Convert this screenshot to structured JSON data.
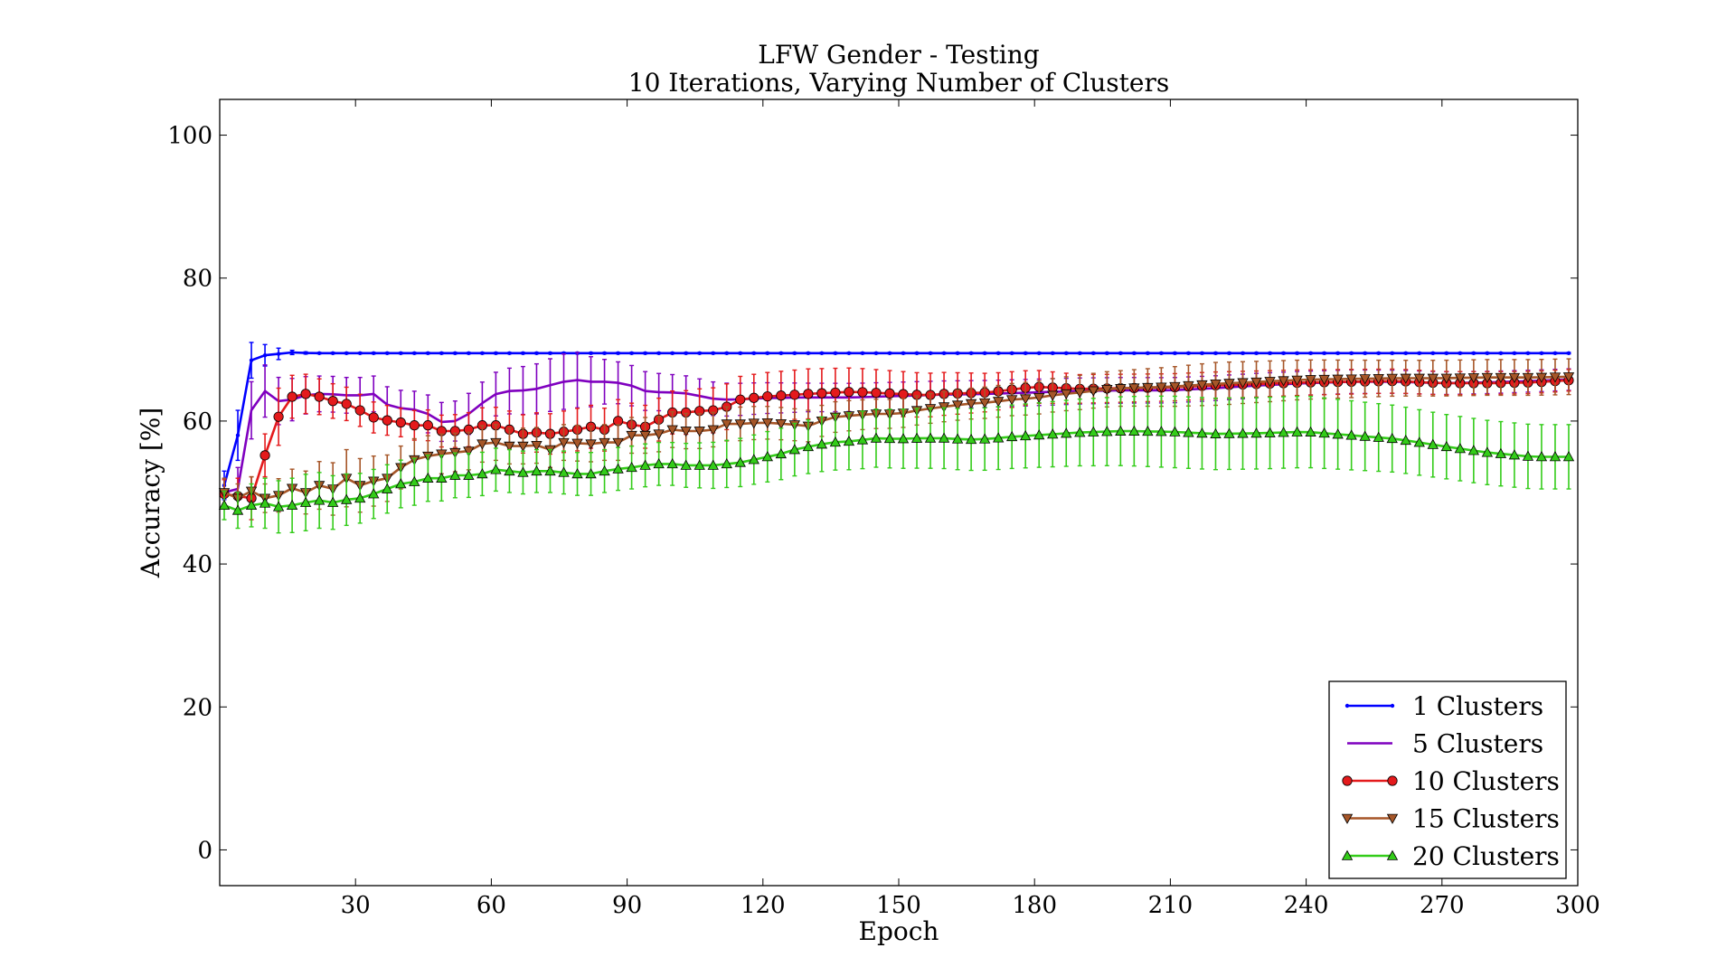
{
  "chart_data": {
    "type": "line",
    "title": "LFW Gender - Testing",
    "subtitle": "10 Iterations, Varying Number of Clusters",
    "xlabel": "Epoch",
    "ylabel": "Accuracy [%]",
    "xlim": [
      0,
      300
    ],
    "ylim": [
      -5,
      105
    ],
    "xticks": [
      30,
      60,
      90,
      120,
      150,
      180,
      210,
      240,
      270,
      300
    ],
    "yticks": [
      0,
      20,
      40,
      60,
      80,
      100
    ],
    "grid": false,
    "legend_position": "bottom-right",
    "marker_interval": 3,
    "series": [
      {
        "name": "1 Clusters",
        "color": "#0000ff",
        "marker": "dot",
        "points": [
          [
            1,
            51
          ],
          [
            4,
            58
          ],
          [
            7,
            68.5
          ],
          [
            10,
            69.2
          ],
          [
            13,
            69.4
          ],
          [
            16,
            69.6
          ],
          [
            20,
            69.5
          ],
          [
            30,
            69.5
          ],
          [
            60,
            69.5
          ],
          [
            120,
            69.5
          ],
          [
            180,
            69.5
          ],
          [
            240,
            69.5
          ],
          [
            298,
            69.5
          ]
        ],
        "err": [
          [
            1,
            2
          ],
          [
            4,
            3.5
          ],
          [
            7,
            2.5
          ],
          [
            10,
            1.5
          ],
          [
            13,
            0.8
          ],
          [
            16,
            0.3
          ],
          [
            20,
            0.1
          ],
          [
            300,
            0.1
          ]
        ]
      },
      {
        "name": "5 Clusters",
        "color": "#7f00bf",
        "marker": "none",
        "points": [
          [
            1,
            50
          ],
          [
            4,
            50.5
          ],
          [
            7,
            61.5
          ],
          [
            10,
            64.2
          ],
          [
            13,
            62.8
          ],
          [
            16,
            63
          ],
          [
            20,
            63.8
          ],
          [
            24,
            63.8
          ],
          [
            28,
            63.6
          ],
          [
            32,
            63.6
          ],
          [
            34,
            63.8
          ],
          [
            38,
            61.8
          ],
          [
            42,
            61.8
          ],
          [
            46,
            61
          ],
          [
            50,
            59.5
          ],
          [
            54,
            60.5
          ],
          [
            58,
            62.5
          ],
          [
            62,
            64.2
          ],
          [
            66,
            64.2
          ],
          [
            70,
            64.5
          ],
          [
            74,
            65.2
          ],
          [
            78,
            65.8
          ],
          [
            82,
            65.5
          ],
          [
            86,
            65.5
          ],
          [
            90,
            65.2
          ],
          [
            94,
            64.2
          ],
          [
            98,
            64
          ],
          [
            102,
            64
          ],
          [
            106,
            63.5
          ],
          [
            110,
            63
          ],
          [
            114,
            63
          ],
          [
            120,
            63.2
          ],
          [
            130,
            63.3
          ],
          [
            140,
            63.3
          ],
          [
            150,
            63.5
          ],
          [
            160,
            63.7
          ],
          [
            170,
            63.8
          ],
          [
            180,
            64
          ],
          [
            190,
            64.2
          ],
          [
            200,
            64.3
          ],
          [
            210,
            64.3
          ],
          [
            220,
            64.6
          ],
          [
            230,
            65
          ],
          [
            240,
            65.3
          ],
          [
            250,
            65.5
          ],
          [
            260,
            65.5
          ],
          [
            270,
            65.3
          ],
          [
            280,
            65.4
          ],
          [
            290,
            65.6
          ],
          [
            298,
            65.8
          ]
        ],
        "err": [
          [
            1,
            2
          ],
          [
            7,
            4
          ],
          [
            20,
            2.5
          ],
          [
            40,
            2.5
          ],
          [
            60,
            3
          ],
          [
            70,
            3.5
          ],
          [
            78,
            4
          ],
          [
            86,
            3
          ],
          [
            100,
            2.5
          ],
          [
            130,
            2
          ],
          [
            300,
            1.5
          ]
        ]
      },
      {
        "name": "10 Clusters",
        "color": "#e41a1c",
        "marker": "circle",
        "points": [
          [
            1,
            49.8
          ],
          [
            4,
            49.5
          ],
          [
            7,
            49.2
          ],
          [
            10,
            55.2
          ],
          [
            13,
            60.6
          ],
          [
            16,
            63.4
          ],
          [
            19,
            63.8
          ],
          [
            22,
            63.4
          ],
          [
            25,
            62.8
          ],
          [
            28,
            62.4
          ],
          [
            31,
            61.5
          ],
          [
            34,
            60.5
          ],
          [
            37,
            60.1
          ],
          [
            40,
            59.8
          ],
          [
            43,
            59.4
          ],
          [
            46,
            59.4
          ],
          [
            49,
            58.6
          ],
          [
            52,
            58.6
          ],
          [
            55,
            58.8
          ],
          [
            58,
            59.4
          ],
          [
            61,
            59.4
          ],
          [
            64,
            58.8
          ],
          [
            67,
            58.2
          ],
          [
            70,
            58.4
          ],
          [
            73,
            58.2
          ],
          [
            76,
            58.5
          ],
          [
            79,
            58.8
          ],
          [
            82,
            59.2
          ],
          [
            85,
            58.8
          ],
          [
            88,
            60
          ],
          [
            91,
            59.5
          ],
          [
            94,
            59.2
          ],
          [
            97,
            60.2
          ],
          [
            100,
            61.2
          ],
          [
            103,
            61.2
          ],
          [
            106,
            61.4
          ],
          [
            109,
            61.5
          ],
          [
            112,
            62
          ],
          [
            115,
            63
          ],
          [
            120,
            63.4
          ],
          [
            130,
            63.8
          ],
          [
            140,
            64.1
          ],
          [
            150,
            63.8
          ],
          [
            156,
            63.6
          ],
          [
            160,
            63.8
          ],
          [
            170,
            64
          ],
          [
            180,
            64.8
          ],
          [
            190,
            64.5
          ],
          [
            200,
            64.6
          ],
          [
            210,
            64.7
          ],
          [
            220,
            65
          ],
          [
            230,
            65.2
          ],
          [
            240,
            65.4
          ],
          [
            250,
            65.5
          ],
          [
            260,
            65.6
          ],
          [
            270,
            65.3
          ],
          [
            280,
            65.3
          ],
          [
            290,
            65.4
          ],
          [
            298,
            65.7
          ]
        ],
        "err": [
          [
            1,
            2
          ],
          [
            7,
            3
          ],
          [
            10,
            3
          ],
          [
            13,
            4
          ],
          [
            16,
            3
          ],
          [
            22,
            2.5
          ],
          [
            40,
            2
          ],
          [
            60,
            2.5
          ],
          [
            80,
            3
          ],
          [
            100,
            3
          ],
          [
            130,
            3.5
          ],
          [
            160,
            3
          ],
          [
            190,
            2
          ],
          [
            300,
            1.5
          ]
        ]
      },
      {
        "name": "15 Clusters",
        "color": "#a65628",
        "marker": "triangle-down",
        "points": [
          [
            1,
            50
          ],
          [
            4,
            49.2
          ],
          [
            7,
            50.2
          ],
          [
            10,
            49.2
          ],
          [
            13,
            49.6
          ],
          [
            16,
            50.6
          ],
          [
            19,
            50
          ],
          [
            22,
            51
          ],
          [
            25,
            50.5
          ],
          [
            28,
            52
          ],
          [
            31,
            51
          ],
          [
            34,
            51.6
          ],
          [
            37,
            52
          ],
          [
            40,
            53.5
          ],
          [
            43,
            54.6
          ],
          [
            46,
            55.1
          ],
          [
            49,
            55.4
          ],
          [
            52,
            55.6
          ],
          [
            55,
            55.8
          ],
          [
            58,
            56.8
          ],
          [
            61,
            57
          ],
          [
            64,
            56.5
          ],
          [
            67,
            56.5
          ],
          [
            70,
            56.6
          ],
          [
            73,
            56
          ],
          [
            76,
            57
          ],
          [
            79,
            56.9
          ],
          [
            82,
            56.8
          ],
          [
            85,
            57
          ],
          [
            88,
            57
          ],
          [
            91,
            58
          ],
          [
            94,
            58
          ],
          [
            97,
            58.2
          ],
          [
            100,
            58.8
          ],
          [
            103,
            58.6
          ],
          [
            106,
            58.6
          ],
          [
            109,
            58.8
          ],
          [
            112,
            59.6
          ],
          [
            115,
            59.6
          ],
          [
            120,
            59.8
          ],
          [
            125,
            59.6
          ],
          [
            130,
            59.3
          ],
          [
            135,
            60.5
          ],
          [
            140,
            60.8
          ],
          [
            145,
            61
          ],
          [
            150,
            61
          ],
          [
            155,
            61.6
          ],
          [
            160,
            62
          ],
          [
            165,
            62.4
          ],
          [
            170,
            62.6
          ],
          [
            175,
            63
          ],
          [
            180,
            63.2
          ],
          [
            185,
            63.7
          ],
          [
            190,
            64
          ],
          [
            195,
            64.4
          ],
          [
            200,
            64.6
          ],
          [
            210,
            64.8
          ],
          [
            220,
            65.2
          ],
          [
            230,
            65.5
          ],
          [
            240,
            65.8
          ],
          [
            250,
            65.9
          ],
          [
            260,
            66
          ],
          [
            270,
            66
          ],
          [
            280,
            66.1
          ],
          [
            290,
            66.1
          ],
          [
            298,
            66.2
          ]
        ],
        "err": [
          [
            1,
            2
          ],
          [
            10,
            2
          ],
          [
            28,
            4
          ],
          [
            40,
            3
          ],
          [
            60,
            2.5
          ],
          [
            100,
            2.5
          ],
          [
            150,
            2
          ],
          [
            200,
            2.5
          ],
          [
            220,
            3
          ],
          [
            260,
            2.5
          ],
          [
            300,
            2.5
          ]
        ]
      },
      {
        "name": "20 Clusters",
        "color": "#33cc19",
        "marker": "triangle-up",
        "points": [
          [
            1,
            48.2
          ],
          [
            4,
            47.5
          ],
          [
            7,
            48.2
          ],
          [
            10,
            48.5
          ],
          [
            13,
            48
          ],
          [
            16,
            48.2
          ],
          [
            19,
            48.6
          ],
          [
            22,
            48.9
          ],
          [
            25,
            48.6
          ],
          [
            28,
            49
          ],
          [
            31,
            49.2
          ],
          [
            34,
            49.8
          ],
          [
            37,
            50.5
          ],
          [
            40,
            51.2
          ],
          [
            43,
            51.5
          ],
          [
            46,
            52
          ],
          [
            49,
            52
          ],
          [
            52,
            52.4
          ],
          [
            55,
            52.4
          ],
          [
            58,
            52.6
          ],
          [
            61,
            53.2
          ],
          [
            64,
            53
          ],
          [
            67,
            52.8
          ],
          [
            70,
            53
          ],
          [
            73,
            53
          ],
          [
            76,
            52.8
          ],
          [
            79,
            52.6
          ],
          [
            82,
            52.6
          ],
          [
            85,
            53
          ],
          [
            88,
            53.3
          ],
          [
            91,
            53.5
          ],
          [
            94,
            53.8
          ],
          [
            97,
            54
          ],
          [
            100,
            54
          ],
          [
            103,
            53.8
          ],
          [
            106,
            53.8
          ],
          [
            109,
            53.8
          ],
          [
            112,
            54
          ],
          [
            115,
            54.2
          ],
          [
            118,
            54.6
          ],
          [
            121,
            55
          ],
          [
            124,
            55.4
          ],
          [
            127,
            56
          ],
          [
            130,
            56.4
          ],
          [
            135,
            57
          ],
          [
            140,
            57.2
          ],
          [
            145,
            57.6
          ],
          [
            150,
            57.5
          ],
          [
            155,
            57.6
          ],
          [
            160,
            57.6
          ],
          [
            165,
            57.4
          ],
          [
            170,
            57.5
          ],
          [
            175,
            57.8
          ],
          [
            180,
            58
          ],
          [
            190,
            58.4
          ],
          [
            200,
            58.6
          ],
          [
            210,
            58.5
          ],
          [
            220,
            58.2
          ],
          [
            230,
            58.3
          ],
          [
            240,
            58.5
          ],
          [
            250,
            58
          ],
          [
            260,
            57.5
          ],
          [
            270,
            56.5
          ],
          [
            280,
            55.6
          ],
          [
            290,
            55
          ],
          [
            298,
            55
          ]
        ],
        "err": [
          [
            1,
            2
          ],
          [
            10,
            3.5
          ],
          [
            20,
            4
          ],
          [
            30,
            3.5
          ],
          [
            60,
            3
          ],
          [
            100,
            3
          ],
          [
            140,
            4
          ],
          [
            180,
            4.5
          ],
          [
            210,
            5
          ],
          [
            240,
            5
          ],
          [
            270,
            4.5
          ],
          [
            300,
            4.5
          ]
        ]
      }
    ]
  }
}
